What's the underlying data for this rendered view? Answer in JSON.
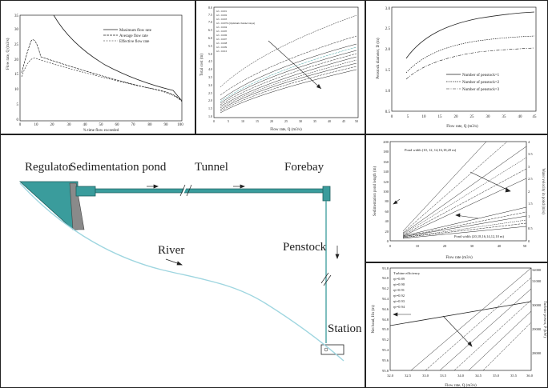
{
  "p1": {
    "ylabel": "Flow rate, Q (m3/s)",
    "xlabel": "% time flow exceeded",
    "yticks": [
      "0",
      "5",
      "10",
      "15",
      "20",
      "25",
      "30",
      "35"
    ],
    "xticks": [
      "0",
      "10",
      "20",
      "30",
      "40",
      "50",
      "60",
      "70",
      "80",
      "90",
      "100"
    ],
    "legend": [
      "Maximum flow rate",
      "Average flow rate",
      "Effective flow rate"
    ]
  },
  "p2": {
    "ylabel": "Total cost (m)",
    "xlabel": "Flow rate, Q (m3/s)",
    "yticks": [
      "1.0",
      "1.5",
      "2.0",
      "2.5",
      "3.0",
      "3.5",
      "4.0",
      "4.5",
      "5.0",
      "5.5",
      "6.0",
      "6.5",
      "7.0",
      "7.5",
      "8.0"
    ],
    "xticks": [
      "0",
      "5",
      "10",
      "15",
      "20",
      "25",
      "30",
      "35",
      "40",
      "45",
      "50"
    ],
    "legend": [
      "nf = 0.001",
      "nf = 0.002",
      "nf = 0.003",
      "nf = 0.0076 (Optimum channel slope)",
      "nf = 0.004",
      "nf = 0.005",
      "nf = 0.006",
      "nf = 0.007",
      "nf = 0.008",
      "nf = 0.009",
      "nf = 0.010"
    ]
  },
  "p3": {
    "ylabel": "Penstock diameter, D (m)",
    "xlabel": "Flow rate, Q (m3/s)",
    "yticks": [
      "0.5",
      "1.0",
      "1.5",
      "2.0",
      "2.5",
      "3.0"
    ],
    "xticks": [
      "0",
      "5",
      "10",
      "15",
      "20",
      "25",
      "30",
      "35",
      "40",
      "45"
    ],
    "legend": [
      "Number of penstock=1",
      "Number of penstock=2",
      "Number of penstock=3"
    ]
  },
  "p4": {
    "ylabel": "Sedimentation pond length (m)",
    "ylabel2": "Water velocity in pond (m/s)",
    "xlabel": "Flow rate (m3/s)",
    "yticks": [
      "0",
      "20",
      "40",
      "60",
      "80",
      "100",
      "120",
      "140",
      "160",
      "180",
      "200"
    ],
    "y2ticks": [
      "0",
      "0.5",
      "1",
      "1.5",
      "2",
      "2.5",
      "3",
      "3.5",
      "4"
    ],
    "xticks": [
      "0",
      "10",
      "20",
      "30",
      "40",
      "50"
    ],
    "ann_top": "Pond width (10, 12, 14,16,18,20 m)",
    "ann_bottom": "Pond width (20,18,16,14,12,10 m)"
  },
  "p5": {
    "ylabel": "Net head, Hn (m)",
    "ylabel2": "Turbine power, P (kW)",
    "xlabel": "Flow rate, Q (m3/s)",
    "yticks": [
      "95.8",
      "95.6",
      "95.4",
      "95.2",
      "95.0",
      "94.8",
      "94.6",
      "94.4",
      "94.2",
      "94.0",
      "93.8"
    ],
    "y2ticks": [
      "28000",
      "29000",
      "30000",
      "31000",
      "32000"
    ],
    "xticks": [
      "32.0",
      "32.5",
      "33.0",
      "33.5",
      "34.0",
      "34.5",
      "35.0",
      "35.5",
      "36.0"
    ],
    "legend_title": "Turbine efficiency",
    "legend": [
      "ηt=0.89",
      "ηt=0.90",
      "ηt=0.91",
      "ηt=0.92",
      "ηt=0.93",
      "ηt=0.94"
    ]
  },
  "diagram": {
    "regulator": "Regulator",
    "sedimentation_pond": "Sedimentation pond",
    "tunnel": "Tunnel",
    "forebay": "Forebay",
    "river": "River",
    "penstock": "Penstock",
    "station": "Station",
    "colors": {
      "water": "#3a9c9c",
      "river": "#9fd6e0",
      "gate": "#888888"
    }
  }
}
